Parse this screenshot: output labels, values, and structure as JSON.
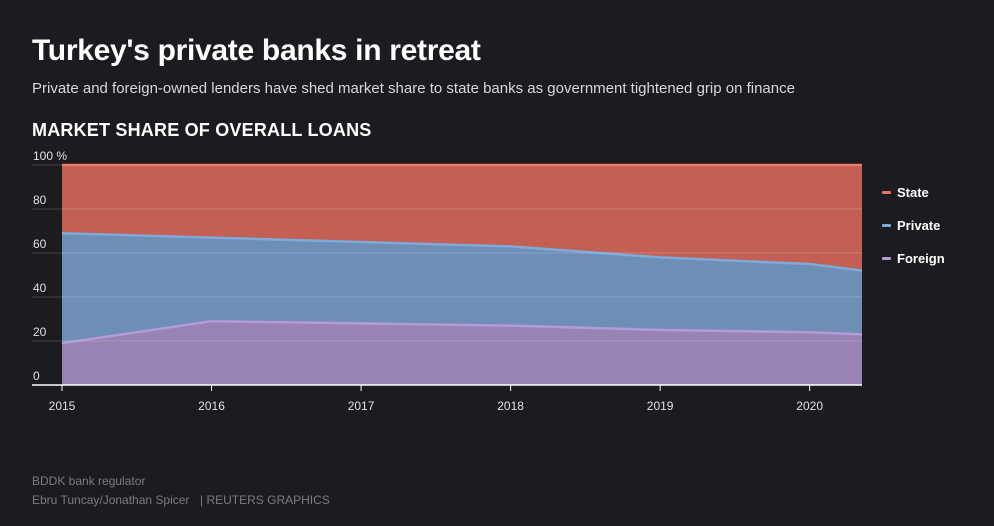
{
  "header": {
    "title": "Turkey's private banks in retreat",
    "subtitle": "Private and foreign-owned lenders have shed market share to state banks as government tightened grip on finance",
    "chart_heading": "MARKET SHARE OF OVERALL LOANS"
  },
  "footer": {
    "source": "BDDK bank regulator",
    "credit": "Ebru Tuncay/Jonathan Spicer",
    "brand": "| REUTERS GRAPHICS"
  },
  "colors": {
    "background": "#1c1b1f",
    "state": "#e8705f",
    "private": "#7fa9d8",
    "foreign": "#b49ad6"
  },
  "chart_data": {
    "type": "area",
    "stacked": true,
    "ylabel": "",
    "xlabel": "",
    "ylim": [
      0,
      100
    ],
    "xlim": [
      2015,
      2020.35
    ],
    "y_ticks": [
      {
        "value": 0,
        "label": "0"
      },
      {
        "value": 20,
        "label": "20"
      },
      {
        "value": 40,
        "label": "40"
      },
      {
        "value": 60,
        "label": "60"
      },
      {
        "value": 80,
        "label": "80"
      },
      {
        "value": 100,
        "label": "100 %"
      }
    ],
    "x_ticks": [
      {
        "value": 2015,
        "label": "2015"
      },
      {
        "value": 2016,
        "label": "2016"
      },
      {
        "value": 2017,
        "label": "2017"
      },
      {
        "value": 2018,
        "label": "2018"
      },
      {
        "value": 2019,
        "label": "2019"
      },
      {
        "value": 2020,
        "label": "2020"
      }
    ],
    "x": [
      2015,
      2016,
      2017,
      2018,
      2019,
      2020,
      2020.35
    ],
    "boundaries_description_note": null,
    "series": [
      {
        "name": "Foreign",
        "values": [
          19,
          29,
          28,
          27,
          25,
          24,
          23
        ]
      },
      {
        "name": "Private",
        "values": [
          50,
          38,
          37,
          36,
          33,
          31,
          29
        ]
      },
      {
        "name": "State",
        "values": [
          31,
          33,
          35,
          37,
          42,
          45,
          48
        ]
      }
    ],
    "grid": true,
    "legend_position": "right"
  }
}
